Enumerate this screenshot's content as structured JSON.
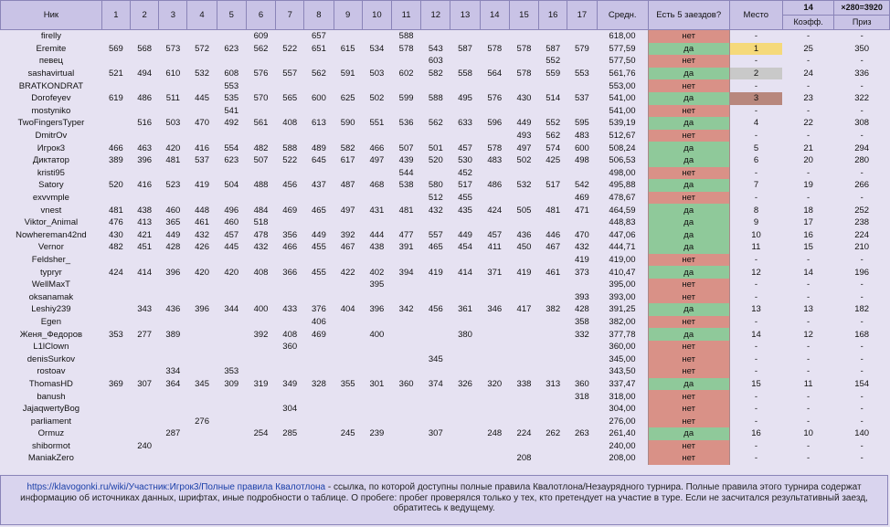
{
  "header": {
    "nick": "Ник",
    "races": [
      "1",
      "2",
      "3",
      "4",
      "5",
      "6",
      "7",
      "8",
      "9",
      "10",
      "11",
      "12",
      "13",
      "14",
      "15",
      "16",
      "17"
    ],
    "avg": "Средн.",
    "has5": "Есть 5 заездов?",
    "place": "Место",
    "coef_top": "14",
    "prize_top": "×280=3920",
    "coef": "Коэфф.",
    "prize": "Приз"
  },
  "colors": {
    "yes": "#8fc99a",
    "no": "#d99187",
    "gold": "#f5d97a",
    "silver": "#c9c9c9",
    "bronze": "#b8877d"
  },
  "rows": [
    {
      "nick": "firelly",
      "r": [
        "",
        "",
        "",
        "",
        "",
        "609",
        "",
        "657",
        "",
        "",
        "588",
        "",
        "",
        "",
        "",
        "",
        ""
      ],
      "avg": "618,00",
      "ok": "нет",
      "place": "-",
      "coef": "-",
      "prize": "-"
    },
    {
      "nick": "Eremite",
      "r": [
        "569",
        "568",
        "573",
        "572",
        "623",
        "562",
        "522",
        "651",
        "615",
        "534",
        "578",
        "543",
        "587",
        "578",
        "578",
        "587",
        "579"
      ],
      "avg": "577,59",
      "ok": "да",
      "place": "1",
      "coef": "25",
      "prize": "350"
    },
    {
      "nick": "певец",
      "r": [
        "",
        "",
        "",
        "",
        "",
        "",
        "",
        "",
        "",
        "",
        "",
        "603",
        "",
        "",
        "",
        "552",
        ""
      ],
      "avg": "577,50",
      "ok": "нет",
      "place": "-",
      "coef": "-",
      "prize": "-"
    },
    {
      "nick": "sashavirtual",
      "r": [
        "521",
        "494",
        "610",
        "532",
        "608",
        "576",
        "557",
        "562",
        "591",
        "503",
        "602",
        "582",
        "558",
        "564",
        "578",
        "559",
        "553"
      ],
      "avg": "561,76",
      "ok": "да",
      "place": "2",
      "coef": "24",
      "prize": "336"
    },
    {
      "nick": "BRATKONDRAT",
      "r": [
        "",
        "",
        "",
        "",
        "553",
        "",
        "",
        "",
        "",
        "",
        "",
        "",
        "",
        "",
        "",
        "",
        ""
      ],
      "avg": "553,00",
      "ok": "нет",
      "place": "-",
      "coef": "-",
      "prize": "-"
    },
    {
      "nick": "Dorofeyev",
      "r": [
        "619",
        "486",
        "511",
        "445",
        "535",
        "570",
        "565",
        "600",
        "625",
        "502",
        "599",
        "588",
        "495",
        "576",
        "430",
        "514",
        "537"
      ],
      "avg": "541,00",
      "ok": "да",
      "place": "3",
      "coef": "23",
      "prize": "322"
    },
    {
      "nick": "mostyniko",
      "r": [
        "",
        "",
        "",
        "",
        "541",
        "",
        "",
        "",
        "",
        "",
        "",
        "",
        "",
        "",
        "",
        "",
        ""
      ],
      "avg": "541,00",
      "ok": "нет",
      "place": "-",
      "coef": "-",
      "prize": "-"
    },
    {
      "nick": "TwoFingersTyper",
      "r": [
        "",
        "516",
        "503",
        "470",
        "492",
        "561",
        "408",
        "613",
        "590",
        "551",
        "536",
        "562",
        "633",
        "596",
        "449",
        "552",
        "595"
      ],
      "avg": "539,19",
      "ok": "да",
      "place": "4",
      "coef": "22",
      "prize": "308"
    },
    {
      "nick": "DmitrOv",
      "r": [
        "",
        "",
        "",
        "",
        "",
        "",
        "",
        "",
        "",
        "",
        "",
        "",
        "",
        "",
        "493",
        "562",
        "483"
      ],
      "avg": "512,67",
      "ok": "нет",
      "place": "-",
      "coef": "-",
      "prize": "-"
    },
    {
      "nick": "Игрок3",
      "r": [
        "466",
        "463",
        "420",
        "416",
        "554",
        "482",
        "588",
        "489",
        "582",
        "466",
        "507",
        "501",
        "457",
        "578",
        "497",
        "574",
        "600"
      ],
      "avg": "508,24",
      "ok": "да",
      "place": "5",
      "coef": "21",
      "prize": "294"
    },
    {
      "nick": "Диктатор",
      "r": [
        "389",
        "396",
        "481",
        "537",
        "623",
        "507",
        "522",
        "645",
        "617",
        "497",
        "439",
        "520",
        "530",
        "483",
        "502",
        "425",
        "498"
      ],
      "avg": "506,53",
      "ok": "да",
      "place": "6",
      "coef": "20",
      "prize": "280"
    },
    {
      "nick": "kristi95",
      "r": [
        "",
        "",
        "",
        "",
        "",
        "",
        "",
        "",
        "",
        "",
        "544",
        "",
        "452",
        "",
        "",
        "",
        ""
      ],
      "avg": "498,00",
      "ok": "нет",
      "place": "-",
      "coef": "-",
      "prize": "-"
    },
    {
      "nick": "Satory",
      "r": [
        "520",
        "416",
        "523",
        "419",
        "504",
        "488",
        "456",
        "437",
        "487",
        "468",
        "538",
        "580",
        "517",
        "486",
        "532",
        "517",
        "542"
      ],
      "avg": "495,88",
      "ok": "да",
      "place": "7",
      "coef": "19",
      "prize": "266"
    },
    {
      "nick": "exvvmple",
      "r": [
        "",
        "",
        "",
        "",
        "",
        "",
        "",
        "",
        "",
        "",
        "",
        "512",
        "455",
        "",
        "",
        "",
        "469"
      ],
      "avg": "478,67",
      "ok": "нет",
      "place": "-",
      "coef": "-",
      "prize": "-"
    },
    {
      "nick": "vnest",
      "r": [
        "481",
        "438",
        "460",
        "448",
        "496",
        "484",
        "469",
        "465",
        "497",
        "431",
        "481",
        "432",
        "435",
        "424",
        "505",
        "481",
        "471"
      ],
      "avg": "464,59",
      "ok": "да",
      "place": "8",
      "coef": "18",
      "prize": "252"
    },
    {
      "nick": "Viktor_Animal",
      "r": [
        "476",
        "413",
        "365",
        "461",
        "460",
        "518",
        "",
        "",
        "",
        "",
        "",
        "",
        "",
        "",
        "",
        "",
        ""
      ],
      "avg": "448,83",
      "ok": "да",
      "place": "9",
      "coef": "17",
      "prize": "238"
    },
    {
      "nick": "Nowhereman42nd",
      "r": [
        "430",
        "421",
        "449",
        "432",
        "457",
        "478",
        "356",
        "449",
        "392",
        "444",
        "477",
        "557",
        "449",
        "457",
        "436",
        "446",
        "470"
      ],
      "avg": "447,06",
      "ok": "да",
      "place": "10",
      "coef": "16",
      "prize": "224"
    },
    {
      "nick": "Vernor",
      "r": [
        "482",
        "451",
        "428",
        "426",
        "445",
        "432",
        "466",
        "455",
        "467",
        "438",
        "391",
        "465",
        "454",
        "411",
        "450",
        "467",
        "432"
      ],
      "avg": "444,71",
      "ok": "да",
      "place": "11",
      "coef": "15",
      "prize": "210"
    },
    {
      "nick": "Feldsher_",
      "r": [
        "",
        "",
        "",
        "",
        "",
        "",
        "",
        "",
        "",
        "",
        "",
        "",
        "",
        "",
        "",
        "",
        "419"
      ],
      "avg": "419,00",
      "ok": "нет",
      "place": "-",
      "coef": "-",
      "prize": "-"
    },
    {
      "nick": "typryr",
      "r": [
        "424",
        "414",
        "396",
        "420",
        "420",
        "408",
        "366",
        "455",
        "422",
        "402",
        "394",
        "419",
        "414",
        "371",
        "419",
        "461",
        "373"
      ],
      "avg": "410,47",
      "ok": "да",
      "place": "12",
      "coef": "14",
      "prize": "196"
    },
    {
      "nick": "WellMaxT",
      "r": [
        "",
        "",
        "",
        "",
        "",
        "",
        "",
        "",
        "",
        "395",
        "",
        "",
        "",
        "",
        "",
        "",
        ""
      ],
      "avg": "395,00",
      "ok": "нет",
      "place": "-",
      "coef": "-",
      "prize": "-"
    },
    {
      "nick": "oksanamak",
      "r": [
        "",
        "",
        "",
        "",
        "",
        "",
        "",
        "",
        "",
        "",
        "",
        "",
        "",
        "",
        "",
        "",
        "393"
      ],
      "avg": "393,00",
      "ok": "нет",
      "place": "-",
      "coef": "-",
      "prize": "-"
    },
    {
      "nick": "Leshiy239",
      "r": [
        "",
        "343",
        "436",
        "396",
        "344",
        "400",
        "433",
        "376",
        "404",
        "396",
        "342",
        "456",
        "361",
        "346",
        "417",
        "382",
        "428"
      ],
      "avg": "391,25",
      "ok": "да",
      "place": "13",
      "coef": "13",
      "prize": "182"
    },
    {
      "nick": "Egen",
      "r": [
        "",
        "",
        "",
        "",
        "",
        "",
        "",
        "406",
        "",
        "",
        "",
        "",
        "",
        "",
        "",
        "",
        "358"
      ],
      "avg": "382,00",
      "ok": "нет",
      "place": "-",
      "coef": "-",
      "prize": "-"
    },
    {
      "nick": "Женя_Федоров",
      "r": [
        "353",
        "277",
        "389",
        "",
        "",
        "392",
        "408",
        "469",
        "",
        "400",
        "",
        "",
        "380",
        "",
        "",
        "",
        "332"
      ],
      "avg": "377,78",
      "ok": "да",
      "place": "14",
      "coef": "12",
      "prize": "168"
    },
    {
      "nick": "L1lClown",
      "r": [
        "",
        "",
        "",
        "",
        "",
        "",
        "360",
        "",
        "",
        "",
        "",
        "",
        "",
        "",
        "",
        "",
        ""
      ],
      "avg": "360,00",
      "ok": "нет",
      "place": "-",
      "coef": "-",
      "prize": "-"
    },
    {
      "nick": "denisSurkov",
      "r": [
        "",
        "",
        "",
        "",
        "",
        "",
        "",
        "",
        "",
        "",
        "",
        "345",
        "",
        "",
        "",
        "",
        ""
      ],
      "avg": "345,00",
      "ok": "нет",
      "place": "-",
      "coef": "-",
      "prize": "-"
    },
    {
      "nick": "rostoav",
      "r": [
        "",
        "",
        "334",
        "",
        "353",
        "",
        "",
        "",
        "",
        "",
        "",
        "",
        "",
        "",
        "",
        "",
        ""
      ],
      "avg": "343,50",
      "ok": "нет",
      "place": "-",
      "coef": "-",
      "prize": "-"
    },
    {
      "nick": "ThomasHD",
      "r": [
        "369",
        "307",
        "364",
        "345",
        "309",
        "319",
        "349",
        "328",
        "355",
        "301",
        "360",
        "374",
        "326",
        "320",
        "338",
        "313",
        "360"
      ],
      "avg": "337,47",
      "ok": "да",
      "place": "15",
      "coef": "11",
      "prize": "154"
    },
    {
      "nick": "banush",
      "r": [
        "",
        "",
        "",
        "",
        "",
        "",
        "",
        "",
        "",
        "",
        "",
        "",
        "",
        "",
        "",
        "",
        "318"
      ],
      "avg": "318,00",
      "ok": "нет",
      "place": "-",
      "coef": "-",
      "prize": "-"
    },
    {
      "nick": "JajaqwertyBog",
      "r": [
        "",
        "",
        "",
        "",
        "",
        "",
        "304",
        "",
        "",
        "",
        "",
        "",
        "",
        "",
        "",
        "",
        ""
      ],
      "avg": "304,00",
      "ok": "нет",
      "place": "-",
      "coef": "-",
      "prize": "-"
    },
    {
      "nick": "parliament",
      "r": [
        "",
        "",
        "",
        "276",
        "",
        "",
        "",
        "",
        "",
        "",
        "",
        "",
        "",
        "",
        "",
        "",
        ""
      ],
      "avg": "276,00",
      "ok": "нет",
      "place": "-",
      "coef": "-",
      "prize": "-"
    },
    {
      "nick": "Ormuz",
      "r": [
        "",
        "",
        "287",
        "",
        "",
        "254",
        "285",
        "",
        "245",
        "239",
        "",
        "307",
        "",
        "248",
        "224",
        "262",
        "263"
      ],
      "avg": "261,40",
      "ok": "да",
      "place": "16",
      "coef": "10",
      "prize": "140"
    },
    {
      "nick": "shibormot",
      "r": [
        "",
        "240",
        "",
        "",
        "",
        "",
        "",
        "",
        "",
        "",
        "",
        "",
        "",
        "",
        "",
        "",
        ""
      ],
      "avg": "240,00",
      "ok": "нет",
      "place": "-",
      "coef": "-",
      "prize": "-"
    },
    {
      "nick": "ManiakZero",
      "r": [
        "",
        "",
        "",
        "",
        "",
        "",
        "",
        "",
        "",
        "",
        "",
        "",
        "",
        "",
        "208",
        "",
        ""
      ],
      "avg": "208,00",
      "ok": "нет",
      "place": "-",
      "coef": "-",
      "prize": "-"
    }
  ],
  "footer": {
    "link": "https://klavogonki.ru/wiki/Участник:Игрок3/Полные правила Квалотлона",
    "text": " - ссылка, по которой доступны полные правила Квалотлона/Незаурядного турнира. Полные правила этого турнира содержат информацию об источниках данных, шрифтах, иные подробности о таблице. О пробеге: пробег проверялся только у тех, кто претендует на участие в туре. Если не засчитался результативный заезд, обратитесь к ведущему."
  }
}
